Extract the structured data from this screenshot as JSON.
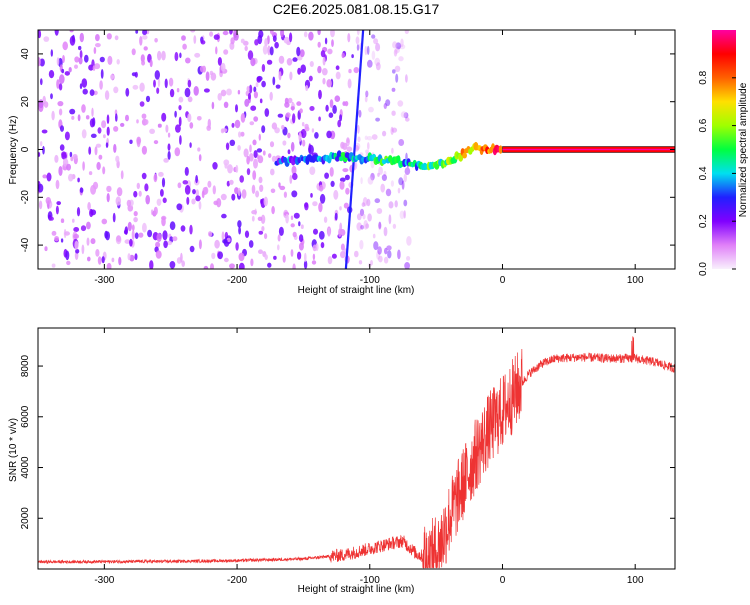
{
  "title": "C2E6.2025.081.08.15.G17",
  "chart_data": [
    {
      "type": "heatmap",
      "xlabel": "Height of straight line (km)",
      "ylabel": "Frequency (Hz)",
      "xlim": [
        -350,
        130
      ],
      "ylim": [
        -50,
        50
      ],
      "xticks": [
        -300,
        -200,
        -100,
        0,
        100
      ],
      "yticks": [
        -40,
        -20,
        0,
        20,
        40
      ],
      "colorbar": {
        "label": "Normalized spectral amplitude",
        "range": [
          0,
          1
        ],
        "ticks": [
          0.0,
          0.2,
          0.4,
          0.6,
          0.8
        ],
        "colors": [
          "#f8f0fc",
          "#e080f8",
          "#8000ff",
          "#2020ff",
          "#00e0f0",
          "#00ff40",
          "#a0ff00",
          "#ffe000",
          "#ff6000",
          "#ff0000",
          "#ff00a0"
        ]
      },
      "features": [
        {
          "name": "noise",
          "x_range": [
            -350,
            -110
          ],
          "freq_range": [
            -50,
            50
          ],
          "amplitude": 0.1
        },
        {
          "name": "fading-noise",
          "x_range": [
            -110,
            -70
          ],
          "freq_range": [
            -50,
            50
          ],
          "amplitude": 0.05
        },
        {
          "name": "tone-track",
          "points": [
            [
              -170,
              -5
            ],
            [
              -150,
              -4
            ],
            [
              -120,
              -3
            ],
            [
              -100,
              -4
            ],
            [
              -80,
              -5
            ],
            [
              -60,
              -7
            ],
            [
              -45,
              -6
            ],
            [
              -30,
              -2
            ],
            [
              -20,
              1
            ],
            [
              -10,
              0
            ],
            [
              0,
              0
            ],
            [
              130,
              0
            ]
          ],
          "amplitude": [
            0.3,
            0.35,
            0.4,
            0.45,
            0.4,
            0.5,
            0.55,
            0.7,
            0.8,
            0.85,
            0.9,
            0.95
          ]
        },
        {
          "name": "diagonal-streak",
          "points": [
            [
              -118,
              -50
            ],
            [
              -105,
              50
            ]
          ],
          "amplitude": 0.3
        }
      ]
    },
    {
      "type": "line",
      "xlabel": "Height of straight line (km)",
      "ylabel": "SNR (10 * v/v)",
      "xlim": [
        -350,
        130
      ],
      "ylim": [
        0,
        9500
      ],
      "xticks": [
        -300,
        -200,
        -100,
        0,
        100
      ],
      "yticks": [
        2000,
        4000,
        6000,
        8000
      ],
      "color": "#ee3333",
      "envelope": [
        {
          "x": -350,
          "y": 280
        },
        {
          "x": -300,
          "y": 290
        },
        {
          "x": -250,
          "y": 300
        },
        {
          "x": -200,
          "y": 330
        },
        {
          "x": -150,
          "y": 400
        },
        {
          "x": -120,
          "y": 550
        },
        {
          "x": -100,
          "y": 800
        },
        {
          "x": -85,
          "y": 1000
        },
        {
          "x": -75,
          "y": 1100
        },
        {
          "x": -65,
          "y": 600
        },
        {
          "x": -55,
          "y": 400
        },
        {
          "x": -48,
          "y": 800
        },
        {
          "x": -40,
          "y": 2000
        },
        {
          "x": -30,
          "y": 3300
        },
        {
          "x": -20,
          "y": 4500
        },
        {
          "x": -10,
          "y": 5500
        },
        {
          "x": 0,
          "y": 6200
        },
        {
          "x": 10,
          "y": 7000
        },
        {
          "x": 20,
          "y": 7700
        },
        {
          "x": 30,
          "y": 8100
        },
        {
          "x": 40,
          "y": 8300
        },
        {
          "x": 60,
          "y": 8350
        },
        {
          "x": 80,
          "y": 8300
        },
        {
          "x": 100,
          "y": 8300
        },
        {
          "x": 115,
          "y": 8150
        },
        {
          "x": 130,
          "y": 7900
        }
      ]
    }
  ]
}
